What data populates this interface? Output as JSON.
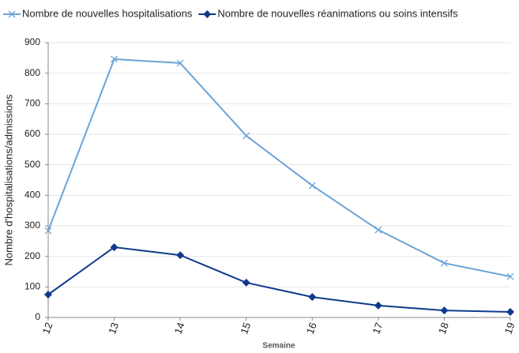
{
  "chart_data": {
    "type": "line",
    "x_label": "Semaine",
    "y_label": "Nombre d'hospitalisations/admissions",
    "x": [
      12,
      13,
      14,
      15,
      16,
      17,
      18,
      19
    ],
    "xlim": [
      12,
      19
    ],
    "xticks": [
      12,
      13,
      14,
      15,
      16,
      17,
      18,
      19
    ],
    "ylim": [
      0,
      900
    ],
    "yticks": [
      0,
      100,
      200,
      300,
      400,
      500,
      600,
      700,
      800,
      900
    ],
    "grid": true,
    "series": [
      {
        "name": "Nombre de nouvelles hospitalisations",
        "color": "#6aa3d8",
        "marker": "x",
        "values": [
          284,
          846,
          833,
          595,
          432,
          287,
          178,
          134
        ]
      },
      {
        "name": "Nombre de nouvelles réanimations ou soins intensifs",
        "color": "#0f3a8c",
        "marker": "diamond",
        "values": [
          75,
          230,
          204,
          114,
          67,
          39,
          23,
          18
        ]
      }
    ]
  }
}
